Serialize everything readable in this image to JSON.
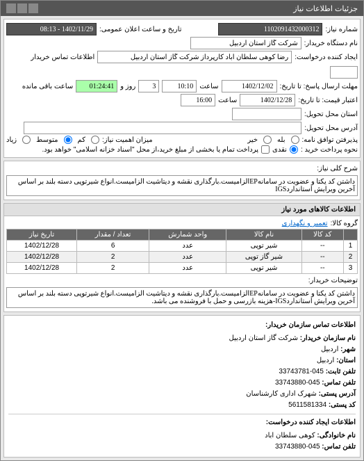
{
  "titlebar": {
    "title": "جزئیات اطلاعات نیاز"
  },
  "header": {
    "request_no_label": "شماره نیاز:",
    "request_no": "1102091432000312",
    "announce_label": "تاریخ و ساعت اعلان عمومی:",
    "announce_value": "1402/11/29 - 08:13",
    "buyer_label": "نام دستگاه خریدار:",
    "buyer": "شرکت گاز استان اردبیل",
    "requester_label": "ایجاد کننده درخواست:",
    "requester": "رضا کوهی سلطان اباد کارپرداز شرکت گاز استان اردبیل",
    "contact_label": "اطلاعات تماس خریدار",
    "deadline_date_label": "مهلت ارسال پاسخ: تا تاریخ:",
    "deadline_date": "1402/12/02",
    "time_label": "ساعت",
    "deadline_time": "10:10",
    "days_remain": "3",
    "days_remain_label": "روز و",
    "time_remain": "01:24:41",
    "time_remain_label": "ساعت باقی مانده",
    "validity_label": "اعتبار قیمت: تا تاریخ:",
    "validity_date": "1402/12/28",
    "validity_time": "16:00",
    "delivery_province_label": "استان محل تحویل:",
    "delivery_addr_label": "آدرس محل تحویل:",
    "agree_label": "پذیرفتن توافق نامه:",
    "yes": "بله",
    "no": "خیر",
    "urgency_label": "میزان اهمیت نیاز:",
    "low": "کم",
    "med": "متوسط",
    "high": "زیاد",
    "payment_label": "نحوه پرداخت خرید :",
    "cash": "نقدی",
    "partial_note": "پرداخت تمام یا بخشی از مبلغ خرید،از محل \"اسناد خزانه اسلامی\" خواهد بود."
  },
  "overview": {
    "section_label": "شرح کلی نیاز:",
    "text": "داشتن کد یکتا و عضویت در سامانهEPالزامیست.بارگذاری نقشه و دیتاشیت الزامیست.انواع شیرتوپی دسته بلند بر اساس آخرین ویرایش استانداردIGS"
  },
  "goods": {
    "section_title": "اطلاعات کالاهای مورد نیاز",
    "category_label": "گروه کالا:",
    "category": "تعمیر و نگهداری",
    "columns": {
      "idx": "",
      "code": "کد کالا",
      "name": "نام کالا",
      "unit": "واحد شمارش",
      "qty": "تعداد / مقدار",
      "date": "تاریخ نیاز"
    },
    "rows": [
      {
        "idx": "1",
        "code": "--",
        "name": "شیر توپی",
        "unit": "عدد",
        "qty": "6",
        "date": "1402/12/28"
      },
      {
        "idx": "2",
        "code": "--",
        "name": "شیر گاز توپی",
        "unit": "عدد",
        "qty": "2",
        "date": "1402/12/28"
      },
      {
        "idx": "3",
        "code": "--",
        "name": "شیر توپی",
        "unit": "عدد",
        "qty": "2",
        "date": "1402/12/28"
      }
    ],
    "desc_label": "توضیحات خریدار:",
    "desc": "داشتن کد یکتا و عضویت در سامانهEPالزامیست.بارگذاری نقشه و دیتاشیت الزامیست.انواع شیرتوپی دسته بلند بر اساس آخرین ویرایش استانداردIGS-هزینه بازرسی و حمل با فروشنده می باشد."
  },
  "contact": {
    "buyer_heading": "اطلاعات تماس سازمان خریدار:",
    "org_label": "نام سازمان خریدار:",
    "org": "شرکت گاز استان اردبیل",
    "city_label": "شهر:",
    "city": "اردبیل",
    "province_label": "استان:",
    "province": "اردبیل",
    "phone_label": "تلفن ثابت:",
    "phone": "045-33743781",
    "fax_label": "تلفن تماس:",
    "fax": "045-33743880",
    "address_label": "آدرس پستی:",
    "address": "شهرک اداری کارشناسان",
    "postal_label": "کد پستی:",
    "postal": "5611581334",
    "requester_heading": "اطلاعات ایجاد کننده درخواست:",
    "req_name_label": "نام خانوادگی:",
    "req_name": "کوهی سلطان اباد",
    "req_phone_label": "تلفن تماس:",
    "req_phone": "045-33743880"
  }
}
